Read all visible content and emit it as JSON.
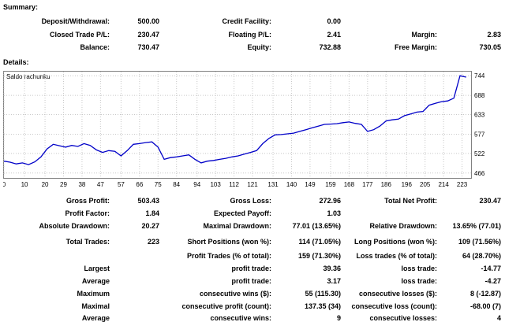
{
  "summary": {
    "title": "Summary:",
    "deposit_withdrawal_label": "Deposit/Withdrawal:",
    "deposit_withdrawal_value": "500.00",
    "credit_facility_label": "Credit Facility:",
    "credit_facility_value": "0.00",
    "closed_trade_pl_label": "Closed Trade P/L:",
    "closed_trade_pl_value": "230.47",
    "floating_pl_label": "Floating P/L:",
    "floating_pl_value": "2.41",
    "margin_label": "Margin:",
    "margin_value": "2.83",
    "balance_label": "Balance:",
    "balance_value": "730.47",
    "equity_label": "Equity:",
    "equity_value": "732.88",
    "free_margin_label": "Free Margin:",
    "free_margin_value": "730.05"
  },
  "details": {
    "title": "Details:",
    "rows": [
      [
        {
          "label": "Gross Profit:",
          "value": "503.43"
        },
        {
          "label": "Gross Loss:",
          "value": "272.96"
        },
        {
          "label": "Total Net Profit:",
          "value": "230.47"
        }
      ],
      [
        {
          "label": "Profit Factor:",
          "value": "1.84"
        },
        {
          "label": "Expected Payoff:",
          "value": "1.03"
        },
        {
          "label": "",
          "value": ""
        }
      ],
      [
        {
          "label": "Absolute Drawdown:",
          "value": "20.27"
        },
        {
          "label": "Maximal Drawdown:",
          "value": "77.01 (13.65%)"
        },
        {
          "label": "Relative Drawdown:",
          "value": "13.65% (77.01)"
        }
      ],
      [
        {
          "label": "Total Trades:",
          "value": "223"
        },
        {
          "label": "Short Positions (won %):",
          "value": "114 (71.05%)"
        },
        {
          "label": "Long Positions (won %):",
          "value": "109 (71.56%)"
        }
      ],
      [
        {
          "label": "",
          "value": ""
        },
        {
          "label": "Profit Trades (% of total):",
          "value": "159 (71.30%)"
        },
        {
          "label": "Loss trades (% of total):",
          "value": "64 (28.70%)"
        }
      ],
      [
        {
          "label": "Largest",
          "value": ""
        },
        {
          "label": "profit trade:",
          "value": "39.36"
        },
        {
          "label": "loss trade:",
          "value": "-14.77"
        }
      ],
      [
        {
          "label": "Average",
          "value": ""
        },
        {
          "label": "profit trade:",
          "value": "3.17"
        },
        {
          "label": "loss trade:",
          "value": "-4.27"
        }
      ],
      [
        {
          "label": "Maximum",
          "value": ""
        },
        {
          "label": "consecutive wins ($):",
          "value": "55 (115.30)"
        },
        {
          "label": "consecutive losses ($):",
          "value": "8 (-12.87)"
        }
      ],
      [
        {
          "label": "Maximal",
          "value": ""
        },
        {
          "label": "consecutive profit (count):",
          "value": "137.35 (34)"
        },
        {
          "label": "consecutive loss (count):",
          "value": "-68.00 (7)"
        }
      ],
      [
        {
          "label": "Average",
          "value": ""
        },
        {
          "label": "consecutive wins:",
          "value": "9"
        },
        {
          "label": "consecutive losses:",
          "value": "4"
        }
      ]
    ]
  },
  "chart_data": {
    "type": "line",
    "title": "Saldo rachunku",
    "x_ticks": [
      0,
      10,
      20,
      29,
      38,
      47,
      57,
      66,
      75,
      84,
      94,
      103,
      112,
      121,
      131,
      140,
      149,
      159,
      168,
      177,
      186,
      196,
      205,
      214,
      223
    ],
    "y_ticks": [
      466,
      522,
      577,
      633,
      688,
      744
    ],
    "xlim": [
      0,
      227
    ],
    "ylim": [
      452,
      758
    ],
    "line_color": "#0000c8",
    "series": [
      {
        "x": [
          0,
          3,
          6,
          9,
          12,
          15,
          18,
          21,
          24,
          27,
          30,
          33,
          36,
          39,
          42,
          45,
          48,
          51,
          54,
          57,
          60,
          63,
          66,
          69,
          72,
          75,
          78,
          81,
          84,
          87,
          90,
          93,
          96,
          99,
          102,
          105,
          108,
          111,
          114,
          117,
          120,
          123,
          126,
          129,
          132,
          135,
          138,
          141,
          144,
          147,
          150,
          153,
          156,
          159,
          162,
          165,
          168,
          171,
          174,
          177,
          180,
          183,
          186,
          189,
          192,
          195,
          198,
          201,
          204,
          207,
          210,
          213,
          216,
          219,
          222,
          225
        ],
        "y": [
          500,
          497,
          492,
          495,
          490,
          498,
          512,
          535,
          548,
          544,
          540,
          545,
          542,
          550,
          545,
          532,
          525,
          530,
          528,
          515,
          530,
          548,
          550,
          553,
          555,
          540,
          505,
          510,
          512,
          515,
          518,
          505,
          495,
          500,
          502,
          505,
          508,
          512,
          515,
          520,
          525,
          530,
          550,
          565,
          575,
          576,
          578,
          580,
          585,
          590,
          595,
          600,
          605,
          606,
          607,
          610,
          612,
          608,
          605,
          585,
          590,
          600,
          615,
          618,
          620,
          630,
          635,
          640,
          642,
          660,
          665,
          670,
          672,
          680,
          744,
          740
        ]
      }
    ]
  }
}
